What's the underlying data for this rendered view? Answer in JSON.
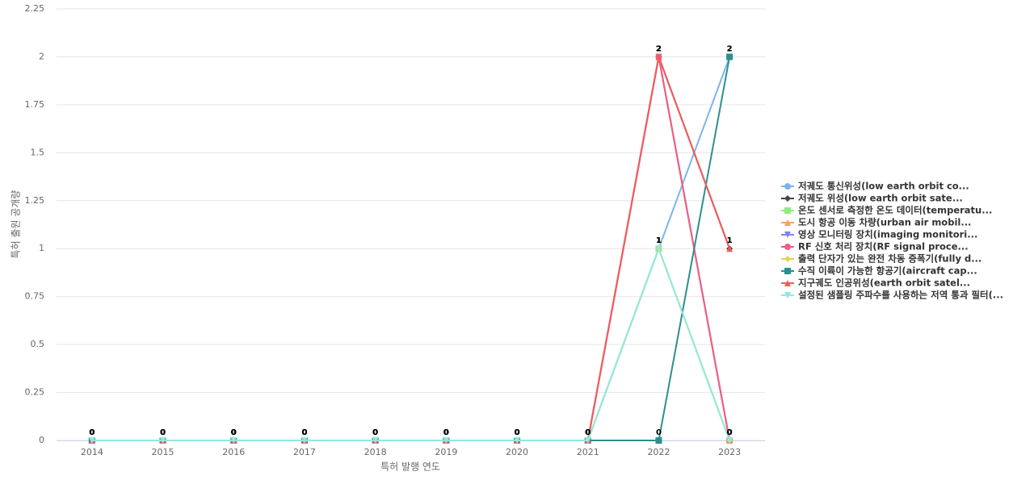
{
  "chart_data": {
    "type": "line",
    "x_label": "특허 발행 연도",
    "y_label": "특허 출원 공개량",
    "categories": [
      "2014",
      "2015",
      "2016",
      "2017",
      "2018",
      "2019",
      "2020",
      "2021",
      "2022",
      "2023"
    ],
    "ylim": [
      0,
      2.25
    ],
    "yticks": [
      0,
      0.25,
      0.5,
      0.75,
      1,
      1.25,
      1.5,
      1.75,
      2,
      2.25
    ],
    "grid": true,
    "legend": "right",
    "series": [
      {
        "name": "저궤도 통신위성(low earth orbit co...",
        "color": "#7cb5ec",
        "marker": "circle",
        "values": [
          0,
          0,
          0,
          0,
          0,
          0,
          0,
          0,
          1,
          2
        ]
      },
      {
        "name": "저궤도 위성(low earth orbit sate...",
        "color": "#434348",
        "marker": "diamond",
        "values": [
          0,
          0,
          0,
          0,
          0,
          0,
          0,
          0,
          2,
          1
        ]
      },
      {
        "name": "온도 센서로 측정한 온도 데이터(temperatu...",
        "color": "#90ed7d",
        "marker": "square",
        "values": [
          0,
          0,
          0,
          0,
          0,
          0,
          0,
          0,
          1,
          0
        ]
      },
      {
        "name": "도시 항공 이동 차량(urban air mobil...",
        "color": "#f7a35c",
        "marker": "triangle",
        "values": [
          0,
          0,
          0,
          0,
          0,
          0,
          0,
          0,
          2,
          0
        ]
      },
      {
        "name": "영상 모니터링 장치(imaging monitori...",
        "color": "#8085e9",
        "marker": "triangle-down",
        "values": [
          0,
          0,
          0,
          0,
          0,
          0,
          0,
          0,
          2,
          0
        ]
      },
      {
        "name": "RF 신호 처리 장치(RF signal proce...",
        "color": "#f15c80",
        "marker": "circle",
        "values": [
          0,
          0,
          0,
          0,
          0,
          0,
          0,
          0,
          2,
          0
        ]
      },
      {
        "name": "출력 단자가 있는 완전 차동 증폭기(fully d...",
        "color": "#e4d354",
        "marker": "diamond",
        "values": [
          0,
          0,
          0,
          0,
          0,
          0,
          0,
          0,
          1,
          0
        ]
      },
      {
        "name": "수직 이륙이 가능한 항공기(aircraft cap...",
        "color": "#2b908f",
        "marker": "square",
        "values": [
          0,
          0,
          0,
          0,
          0,
          0,
          0,
          0,
          0,
          2
        ]
      },
      {
        "name": "지구궤도 인공위성(earth orbit satel...",
        "color": "#f45b5b",
        "marker": "triangle",
        "values": [
          0,
          0,
          0,
          0,
          0,
          0,
          0,
          0,
          2,
          1
        ]
      },
      {
        "name": "설정된 샘플링 주파수를 사용하는 저역 통과 필터(...",
        "color": "#91e8e1",
        "marker": "triangle-down",
        "values": [
          0,
          0,
          0,
          0,
          0,
          0,
          0,
          0,
          1,
          0
        ]
      }
    ]
  }
}
